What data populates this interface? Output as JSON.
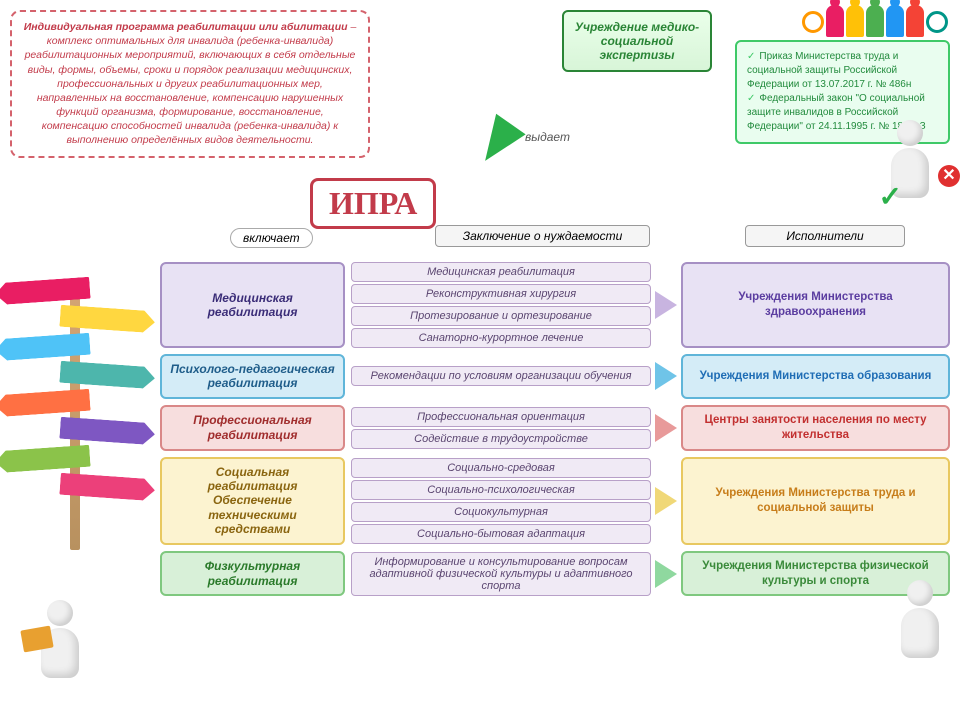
{
  "definition": {
    "title": "Индивидуальная программа реабилитации или абилитации",
    "text": " – комплекс оптимальных для инвалида (ребенка-инвалида) реабилитационных мероприятий, включающих в себя отдельные виды, формы, объемы, сроки и порядок реализации медицинских, профессиональных и других реабилитационных мер, направленных на восстановление, компенсацию нарушенных функций организма, формирование, восстановление, компенсацию способностей инвалида (ребенка-инвалида) к выполнению определённых видов деятельности."
  },
  "ipra": "ИПРА",
  "institution": "Учреждение медико-социальной экспертизы",
  "vydat": "выдает",
  "includes_label": "включает",
  "header_conclusion": "Заключение о нуждаемости",
  "header_executors": "Исполнители",
  "laws": {
    "item1": "Приказ Министерства труда и социальной защиты Российской Федерации от 13.07.2017 г. № 486н",
    "item2": "Федеральный закон \"О социальной защите инвалидов в Российской Федерации\" от 24.11.1995 г. № 181-ФЗ"
  },
  "rows": [
    {
      "cat": "Медицинская реабилитация",
      "cat_bg": "#e8e2f4",
      "cat_border": "#a690c4",
      "cat_color": "#3b2d78",
      "items": [
        "Медицинская реабилитация",
        "Реконструктивная хирургия",
        "Протезирование и ортезирование",
        "Санаторно-курортное лечение"
      ],
      "arrow": "#c8b4e0",
      "exec": "Учреждения Министерства здравоохранения",
      "exec_bg": "#e8e2f4",
      "exec_border": "#a690c4",
      "exec_color": "#5b3da0"
    },
    {
      "cat": "Психолого-педагогическая реабилитация",
      "cat_bg": "#d4ecf7",
      "cat_border": "#5fb5d9",
      "cat_color": "#1f5d8a",
      "items": [
        "Рекомендации по условиям организации обучения"
      ],
      "arrow": "#6fc4e8",
      "exec": "Учреждения Министерства образования",
      "exec_bg": "#d4ecf7",
      "exec_border": "#5fb5d9",
      "exec_color": "#1f6db5"
    },
    {
      "cat": "Профессиональная реабилитация",
      "cat_bg": "#f7dede",
      "cat_border": "#d98888",
      "cat_color": "#a02d2d",
      "items": [
        "Профессиональная ориентация",
        "Содействие в трудоустройстве"
      ],
      "arrow": "#e89a9a",
      "exec": "Центры занятости населения по месту жительства",
      "exec_bg": "#f7dede",
      "exec_border": "#d98888",
      "exec_color": "#c23030"
    },
    {
      "cat": "Социальная реабилитация Обеспечение техническими средствами",
      "cat_bg": "#fcf3d0",
      "cat_border": "#e8c860",
      "cat_color": "#8a6510",
      "items": [
        "Социально-средовая",
        "Социально-психологическая",
        "Социокультурная",
        "Социально-бытовая адаптация"
      ],
      "arrow": "#f0d878",
      "exec": "Учреждения Министерства труда и социальной защиты",
      "exec_bg": "#fcf3d0",
      "exec_border": "#e8c860",
      "exec_color": "#c77d1a"
    },
    {
      "cat": "Физкультурная реабилитация",
      "cat_bg": "#d8f0d8",
      "cat_border": "#7fc87f",
      "cat_color": "#2a7a2a",
      "items": [
        "Информирование и консультирование вопросам адаптивной физической культуры и адаптивного спорта"
      ],
      "arrow": "#8fd89f",
      "exec": "Учреждения Министерства физической культуры и спорта",
      "exec_bg": "#d8f0d8",
      "exec_border": "#7fc87f",
      "exec_color": "#3a8a3a"
    }
  ],
  "signpost_colors": [
    "#e91e63",
    "#ffd740",
    "#4fc3f7",
    "#4db6ac",
    "#ff7043",
    "#7e57c2",
    "#8bc34a",
    "#ec407a"
  ],
  "people_colors": [
    "#ff9800",
    "#e91e63",
    "#ffc107",
    "#4caf50",
    "#2196f3",
    "#f44336",
    "#009688"
  ]
}
